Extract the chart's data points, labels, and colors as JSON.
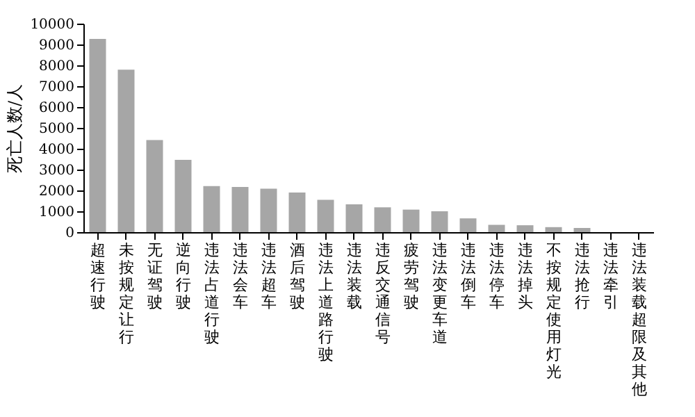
{
  "chart_data": {
    "type": "bar",
    "ylabel": "死亡人数/人",
    "categories": [
      "超速行驶",
      "未按规定让行",
      "无证驾驶",
      "逆向行驶",
      "违法占道行驶",
      "违法会车",
      "违法超车",
      "酒后驾驶",
      "违法上道路行驶",
      "违法装载",
      "违反交通信号",
      "疲劳驾驶",
      "违法变更车道",
      "违法倒车",
      "违法停车",
      "违法掉头",
      "不按规定使用灯光",
      "违法抢行",
      "违法牵引",
      "违法装载超限及其他"
    ],
    "values": [
      9270,
      7790,
      4420,
      3470,
      2210,
      2170,
      2080,
      1900,
      1550,
      1330,
      1190,
      1080,
      1000,
      660,
      350,
      330,
      240,
      200,
      0,
      0
    ],
    "color": "#a6a6a6",
    "ylim": [
      0,
      10000
    ],
    "yticks": [
      0,
      1000,
      2000,
      3000,
      4000,
      5000,
      6000,
      7000,
      8000,
      9000,
      10000
    ],
    "grid": false
  }
}
